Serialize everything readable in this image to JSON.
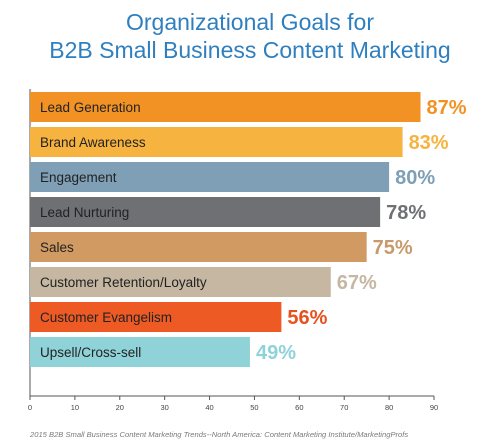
{
  "title_lines": [
    "Organizational Goals for",
    "B2B Small Business Content Marketing"
  ],
  "source": "2015 B2B Small Business Content Marketing Trends--North America: Content Marketing Institute/MarketingProfs",
  "chart_data": {
    "type": "bar",
    "orientation": "horizontal",
    "categories": [
      "Lead Generation",
      "Brand Awareness",
      "Engagement",
      "Lead Nurturing",
      "Sales",
      "Customer Retention/Loyalty",
      "Customer Evangelism",
      "Upsell/Cross-sell"
    ],
    "values": [
      87,
      83,
      80,
      78,
      75,
      67,
      56,
      49
    ],
    "value_labels": [
      "87%",
      "83%",
      "80%",
      "78%",
      "75%",
      "67%",
      "56%",
      "49%"
    ],
    "colors": [
      "#f39224",
      "#f7b33f",
      "#7e9fb6",
      "#6f7074",
      "#d19a63",
      "#c5b7a1",
      "#ed5a24",
      "#8fd3d9"
    ],
    "label_text_colors": [
      "#222222",
      "#222222",
      "#222222",
      "#222222",
      "#222222",
      "#222222",
      "#222222",
      "#222222"
    ],
    "value_label_colors": [
      "#f39224",
      "#f7b33f",
      "#7e9fb6",
      "#6f7074",
      "#c79a6b",
      "#c5b7a1",
      "#e8501f",
      "#8fd3d9"
    ],
    "xlim": [
      0,
      90
    ],
    "xticks": [
      0,
      10,
      20,
      30,
      40,
      50,
      60,
      70,
      80,
      90
    ],
    "grid": false,
    "legend": "none"
  }
}
